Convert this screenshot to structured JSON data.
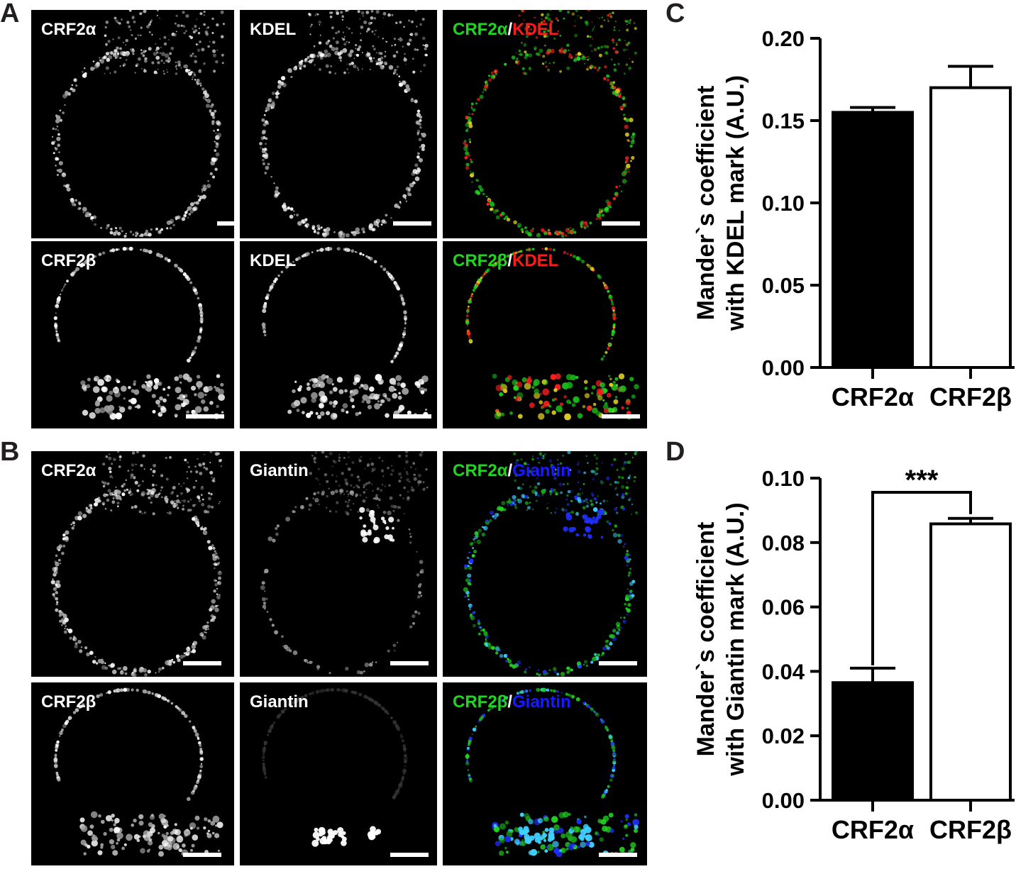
{
  "panel_letters": {
    "a": "A",
    "b": "B",
    "c": "C",
    "d": "D"
  },
  "panels": {
    "a_top": {
      "col1": "CRF2α",
      "col2": "KDEL",
      "col3_left": "CRF2α",
      "col3_sep": "/",
      "col3_right": "KDEL"
    },
    "a_bottom": {
      "col1": "CRF2β",
      "col2": "KDEL",
      "col3_left": "CRF2β",
      "col3_sep": "/",
      "col3_right": "KDEL"
    },
    "b_top": {
      "col1": "CRF2α",
      "col2": "Giantin",
      "col3_left": "CRF2α",
      "col3_sep": "/",
      "col3_right": "Giantin"
    },
    "b_bottom": {
      "col1": "CRF2β",
      "col2": "Giantin",
      "col3_left": "CRF2β",
      "col3_sep": "/",
      "col3_right": "Giantin"
    }
  },
  "colors": {
    "green": "#22d422",
    "red": "#ff1a1a",
    "blue": "#1a1aff",
    "white": "#ffffff",
    "axis": "#000000"
  },
  "chart_data": [
    {
      "type": "bar",
      "panel": "C",
      "categories": [
        "CRF2α",
        "CRF2β"
      ],
      "values": [
        0.155,
        0.17
      ],
      "errors": [
        0.003,
        0.013
      ],
      "fills": [
        "#000000",
        "#ffffff"
      ],
      "ylabel_line1": "Mander`s coefficient",
      "ylabel_line2": "with KDEL mark (A.U.)",
      "ylim": [
        0,
        0.2
      ],
      "yticks": [
        "0.00",
        "0.05",
        "0.10",
        "0.15",
        "0.20"
      ],
      "ytick_values": [
        0,
        0.05,
        0.1,
        0.15,
        0.2
      ],
      "significance": ""
    },
    {
      "type": "bar",
      "panel": "D",
      "categories": [
        "CRF2α",
        "CRF2β"
      ],
      "values": [
        0.0365,
        0.0858
      ],
      "errors": [
        0.0045,
        0.0017
      ],
      "fills": [
        "#000000",
        "#ffffff"
      ],
      "ylabel_line1": "Mander`s coefficient",
      "ylabel_line2": "with Giantin mark (A.U.)",
      "ylim": [
        0,
        0.1
      ],
      "yticks": [
        "0.00",
        "0.02",
        "0.04",
        "0.06",
        "0.08",
        "0.10"
      ],
      "ytick_values": [
        0,
        0.02,
        0.04,
        0.06,
        0.08,
        0.1
      ],
      "significance": "***"
    }
  ]
}
